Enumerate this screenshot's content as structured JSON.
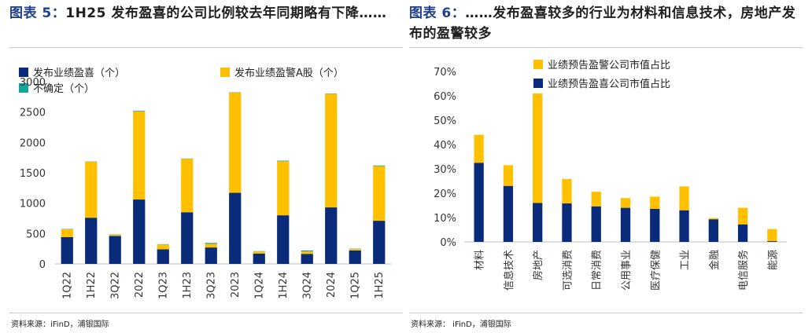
{
  "left": {
    "figure_label": "图表 5：",
    "title": "1H25 发布盈喜的公司比例较去年同期略有下降……",
    "source": "资料来源：iFinD，浦银国际",
    "colors": {
      "positive": "#0a2a7a",
      "warning": "#ffc000",
      "uncertain": "#12a59a"
    },
    "chart_data": {
      "type": "bar",
      "stacked": true,
      "categories": [
        "1Q22",
        "1H22",
        "3Q22",
        "2022",
        "1Q23",
        "1H23",
        "3Q23",
        "2023",
        "1Q24",
        "1H24",
        "3Q24",
        "2024",
        "1Q25",
        "1H25"
      ],
      "series": [
        {
          "name": "发布业绩盈喜（个）",
          "values": [
            440,
            760,
            460,
            1060,
            240,
            850,
            270,
            1170,
            170,
            800,
            165,
            930,
            220,
            710
          ]
        },
        {
          "name": "发布业绩盈警A股（个）",
          "values": [
            130,
            920,
            20,
            1450,
            80,
            880,
            60,
            1650,
            35,
            890,
            40,
            1870,
            25,
            900
          ]
        },
        {
          "name": "不确定（个）",
          "values": [
            5,
            5,
            5,
            10,
            5,
            5,
            15,
            5,
            5,
            10,
            15,
            5,
            5,
            10
          ]
        }
      ],
      "yticks": [
        "0",
        "500",
        "1000",
        "1500",
        "2000",
        "2500",
        "3000"
      ],
      "ylim": [
        0,
        3000
      ],
      "legend_position": "top"
    }
  },
  "right": {
    "figure_label": "图表 6：",
    "title": "……发布盈喜较多的行业为材料和信息技术，房地产发布的盈警较多",
    "source": "资料来源：    iFinD，浦银国际",
    "colors": {
      "positive": "#0a2a7a",
      "warning": "#ffc000"
    },
    "chart_data": {
      "type": "bar",
      "stacked": true,
      "categories": [
        "材料",
        "信息技术",
        "房地产",
        "可选消费",
        "日常消费",
        "公用事业",
        "医疗保健",
        "工业",
        "金融",
        "电信服务",
        "能源"
      ],
      "series": [
        {
          "name": "业绩预告盈喜公司市值占比",
          "values": [
            32.5,
            23,
            16,
            15.8,
            14.6,
            14,
            13.6,
            13,
            9.3,
            7.2,
            0.3
          ]
        },
        {
          "name": "业绩预告盈警公司市值占比",
          "values": [
            11.5,
            8.5,
            45,
            10,
            6,
            4,
            5,
            9.8,
            0.5,
            6.8,
            5
          ]
        }
      ],
      "yticks": [
        "0%",
        "10%",
        "20%",
        "30%",
        "40%",
        "50%",
        "60%",
        "70%"
      ],
      "ylim": [
        0,
        70
      ],
      "legend_position": "top"
    }
  }
}
